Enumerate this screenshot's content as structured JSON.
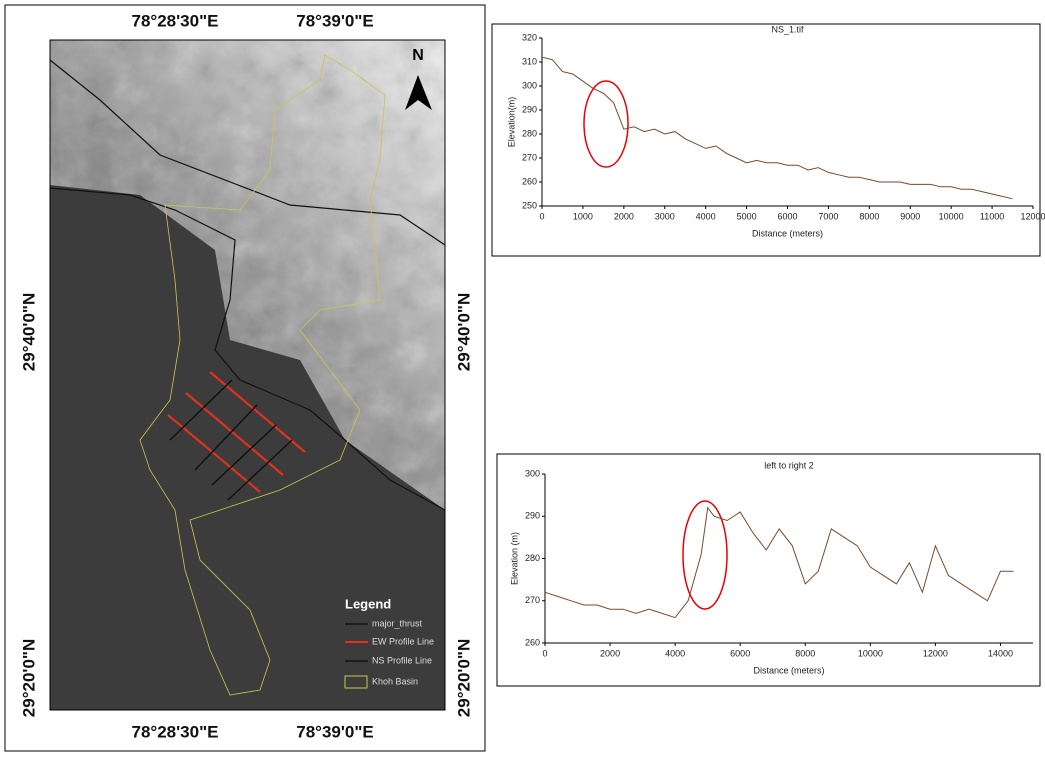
{
  "map": {
    "lon_labels": [
      "78°28'30\"E",
      "78°39'0\"E"
    ],
    "lat_labels": [
      "29°40'0\"N",
      "29°20'0\"N"
    ],
    "north": "N",
    "legend": {
      "title": "Legend",
      "items": [
        "major_thrust",
        "EW Profile Line",
        "NS Profile Line",
        "Khoh Basin"
      ]
    }
  },
  "chart_data": [
    {
      "type": "line",
      "title": "NS_1.tif",
      "x_label": "Distance (meters)",
      "y_label": "Elevation(m)",
      "color": "#7a4a2a",
      "x": [
        0,
        250,
        500,
        750,
        1000,
        1250,
        1500,
        1750,
        2000,
        2250,
        2500,
        2750,
        3000,
        3250,
        3500,
        3750,
        4000,
        4250,
        4500,
        4750,
        5000,
        5250,
        5500,
        5750,
        6000,
        6250,
        6500,
        6750,
        7000,
        7250,
        7500,
        7750,
        8000,
        8250,
        8500,
        8750,
        9000,
        9250,
        9500,
        9750,
        10000,
        10250,
        10500,
        10750,
        11000,
        11250,
        11500
      ],
      "values": [
        312,
        311,
        306,
        305,
        302,
        299,
        297,
        293,
        282,
        283,
        281,
        282,
        280,
        281,
        278,
        276,
        274,
        275,
        272,
        270,
        268,
        269,
        268,
        268,
        267,
        267,
        265,
        266,
        264,
        263,
        262,
        262,
        261,
        260,
        260,
        260,
        259,
        259,
        259,
        258,
        258,
        257,
        257,
        256,
        255,
        254,
        253
      ],
      "xlim": [
        0,
        12000
      ],
      "ylim": [
        250,
        320
      ],
      "xticks": [
        0,
        1000,
        2000,
        3000,
        4000,
        5000,
        6000,
        7000,
        8000,
        9000,
        10000,
        11000,
        12000
      ],
      "yticks": [
        250,
        260,
        270,
        280,
        290,
        300,
        310,
        320
      ]
    },
    {
      "type": "line",
      "title": "left to right 2",
      "x_label": "Distance (meters)",
      "y_label": "Elevation (m)",
      "color": "#7a4a2a",
      "x": [
        0,
        400,
        800,
        1200,
        1600,
        2000,
        2400,
        2800,
        3200,
        3600,
        4000,
        4400,
        4800,
        5000,
        5200,
        5600,
        6000,
        6400,
        6800,
        7200,
        7600,
        8000,
        8400,
        8800,
        9200,
        9600,
        10000,
        10400,
        10800,
        11200,
        11600,
        12000,
        12400,
        12800,
        13200,
        13600,
        14000,
        14400
      ],
      "values": [
        272,
        271,
        270,
        269,
        269,
        268,
        268,
        267,
        268,
        267,
        266,
        270,
        281,
        292,
        290,
        289,
        291,
        286,
        282,
        287,
        283,
        274,
        277,
        287,
        285,
        283,
        278,
        276,
        274,
        279,
        272,
        283,
        276,
        274,
        272,
        270,
        277,
        277
      ],
      "xlim": [
        0,
        15000
      ],
      "ylim": [
        260,
        300
      ],
      "xticks": [
        0,
        2000,
        4000,
        6000,
        8000,
        10000,
        12000,
        14000
      ],
      "yticks": [
        260,
        270,
        280,
        290,
        300
      ]
    }
  ]
}
